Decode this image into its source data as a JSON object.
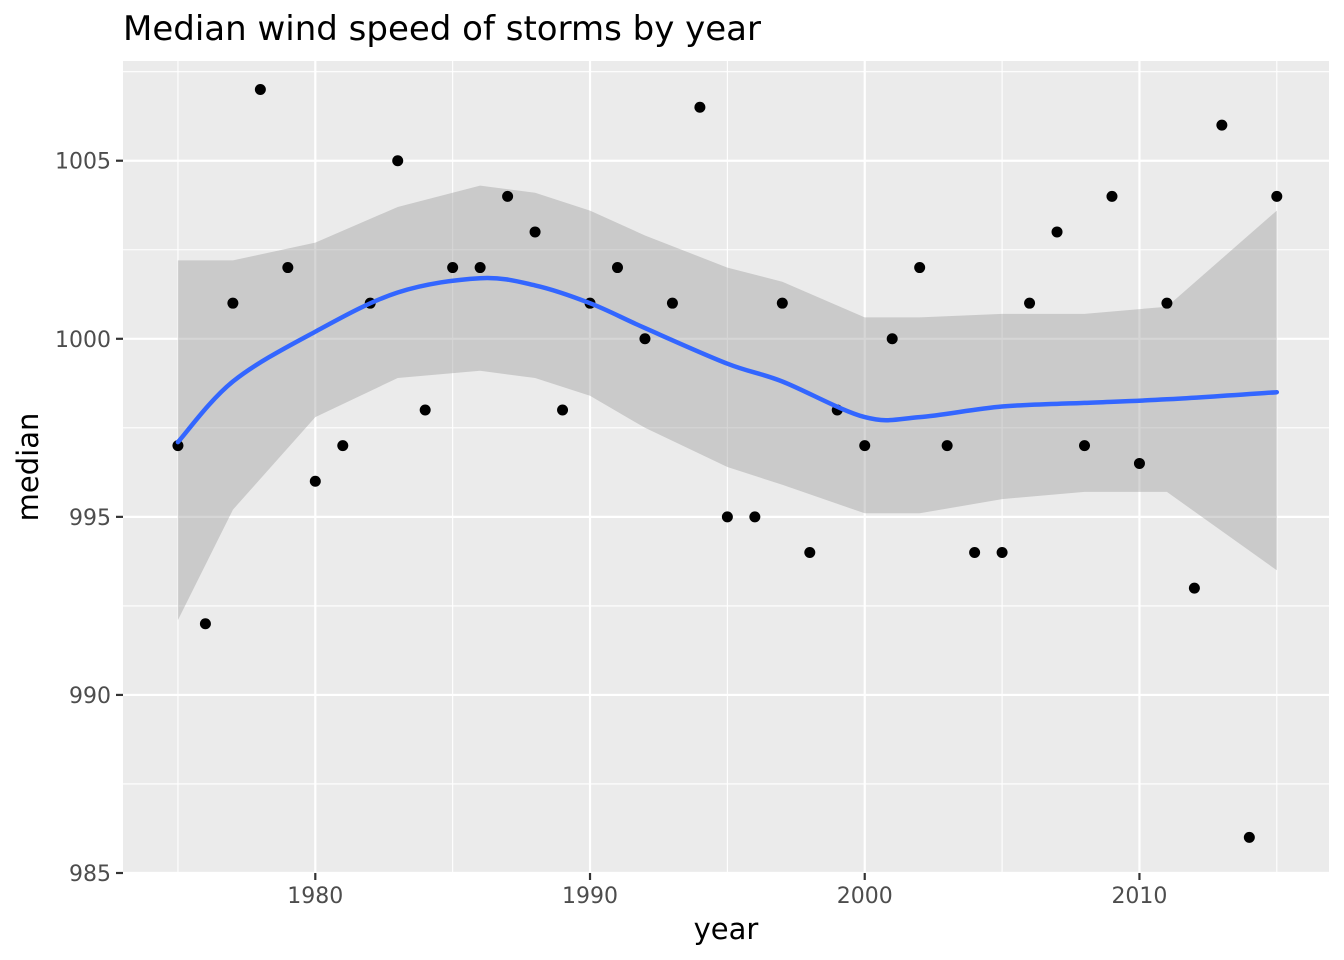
{
  "chart_data": {
    "type": "scatter",
    "title": "Median wind speed of storms by year",
    "xlabel": "year",
    "ylabel": "median",
    "xlim": [
      1973,
      2016.9
    ],
    "ylim": [
      985,
      1007.8
    ],
    "x_ticks": [
      1980,
      1990,
      2000,
      2010
    ],
    "y_ticks": [
      985,
      990,
      995,
      1000,
      1005
    ],
    "grid": true,
    "legend": "none",
    "series": [
      {
        "x": [
          1975,
          1976,
          1977,
          1978,
          1979,
          1980,
          1981,
          1982,
          1983,
          1984,
          1985,
          1986,
          1987,
          1988,
          1989,
          1990,
          1991,
          1992,
          1993,
          1994,
          1995,
          1996,
          1997,
          1998,
          1999,
          2000,
          2001,
          2002,
          2003,
          2004,
          2005,
          2006,
          2007,
          2008,
          2009,
          2010,
          2011,
          2012,
          2013,
          2014,
          2015
        ],
        "y": [
          997,
          992,
          1001,
          1007,
          1002,
          996,
          997,
          1001,
          1005,
          998,
          1002,
          1002,
          1004,
          1003,
          998,
          1001,
          1002,
          1000,
          1001,
          1006.5,
          995,
          995,
          1001,
          994,
          998,
          997,
          1000,
          1002,
          997,
          994,
          994,
          1001,
          1003,
          997,
          1004,
          996.5,
          1001,
          993,
          1006,
          986,
          1004
        ]
      }
    ],
    "smooth": {
      "method": "loess",
      "x": [
        1975,
        1977,
        1980,
        1983,
        1986,
        1988,
        1990,
        1992,
        1995,
        1997,
        2000,
        2002,
        2005,
        2008,
        2011,
        2015
      ],
      "fit": [
        997.1,
        998.8,
        1000.2,
        1001.3,
        1001.7,
        1001.5,
        1001.0,
        1000.3,
        999.3,
        998.8,
        997.8,
        997.8,
        998.1,
        998.2,
        998.3,
        998.5
      ],
      "lower": [
        992.1,
        995.2,
        997.8,
        998.9,
        999.1,
        998.9,
        998.4,
        997.5,
        996.4,
        995.9,
        995.1,
        995.1,
        995.5,
        995.7,
        995.7,
        993.5
      ],
      "upper": [
        1002.2,
        1002.2,
        1002.7,
        1003.7,
        1004.3,
        1004.1,
        1003.6,
        1002.9,
        1002.0,
        1001.6,
        1000.6,
        1000.6,
        1000.7,
        1000.7,
        1000.9,
        1003.6
      ]
    },
    "colors": {
      "panel": "#ebebeb",
      "grid": "#ffffff",
      "point": "#000000",
      "line": "#3366ff",
      "ribbon": "#999999"
    }
  }
}
